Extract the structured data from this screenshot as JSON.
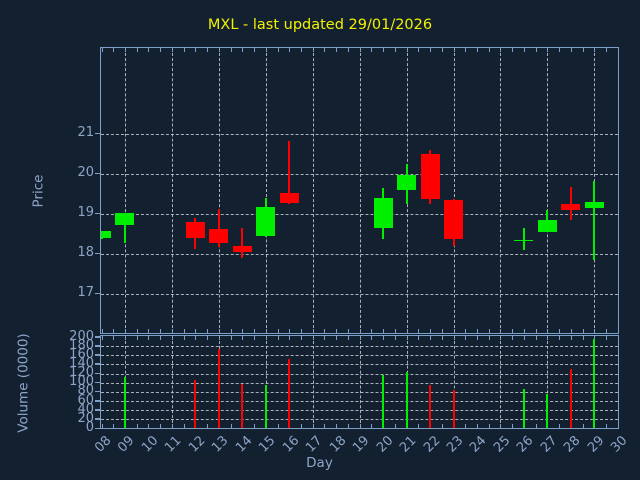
{
  "figure": {
    "background": "#13202f",
    "spine_color": "#7da0c8",
    "label_color": "#8ca5c8",
    "grid_color": "#c6cbd0",
    "title_color": "#f2f200"
  },
  "chart_data": [
    {
      "type": "candlestick",
      "panel": "price",
      "title": "MXL - last updated 29/01/2026",
      "xlabel": "Day",
      "ylabel": "Price",
      "ylim": [
        16.0,
        23.14
      ],
      "xlim": [
        7.95,
        30.1
      ],
      "grid": "dashed; vertical gridlines every 2nd day (09,11,...,29); horizontal at integer prices",
      "legend": "none",
      "up_color": "#00ee00",
      "down_color": "#ff0000",
      "x_tick_labels": [
        "08",
        "09",
        "10",
        "11",
        "12",
        "13",
        "14",
        "15",
        "16",
        "17",
        "18",
        "19",
        "20",
        "21",
        "22",
        "23",
        "24",
        "25",
        "26",
        "27",
        "28",
        "29",
        "30"
      ],
      "y_tick_labels": [
        "17",
        "18",
        "19",
        "20",
        "21"
      ],
      "y_tick_values": [
        17,
        18,
        19,
        20,
        21
      ],
      "days": [
        8,
        9,
        12,
        13,
        14,
        15,
        16,
        20,
        21,
        22,
        23,
        26,
        27,
        28,
        29
      ],
      "open": [
        18.38,
        18.72,
        18.78,
        18.61,
        18.18,
        18.44,
        19.51,
        18.63,
        19.59,
        20.49,
        19.34,
        18.33,
        18.54,
        19.25,
        19.13
      ],
      "high": [
        18.57,
        19.01,
        18.88,
        19.11,
        18.65,
        19.39,
        20.81,
        19.63,
        20.25,
        20.59,
        19.36,
        18.64,
        19.09,
        19.67,
        19.82
      ],
      "low": [
        18.36,
        18.26,
        18.11,
        18.15,
        17.9,
        18.4,
        19.24,
        18.36,
        19.25,
        19.24,
        18.19,
        18.09,
        18.53,
        18.84,
        17.83
      ],
      "close": [
        18.57,
        19.01,
        18.39,
        18.26,
        18.04,
        19.17,
        19.26,
        19.38,
        19.96,
        19.36,
        18.36,
        18.35,
        18.84,
        19.08,
        19.3
      ]
    },
    {
      "type": "bar",
      "panel": "volume",
      "ylabel": "Volume (0000)",
      "ylim": [
        0,
        200
      ],
      "grid": "dashed; horizontal every 20 units; vertical every 2nd day",
      "y_tick_labels": [
        "0",
        "20",
        "40",
        "60",
        "80",
        "100",
        "120",
        "140",
        "160",
        "180",
        "200"
      ],
      "y_tick_values": [
        0,
        20,
        40,
        60,
        80,
        100,
        120,
        140,
        160,
        180,
        200
      ],
      "days": [
        8,
        9,
        12,
        13,
        14,
        15,
        16,
        20,
        21,
        22,
        23,
        26,
        27,
        28,
        29
      ],
      "values": [
        0,
        112,
        105,
        174,
        97,
        95,
        152,
        117,
        124,
        95,
        84,
        87,
        76,
        130,
        195
      ]
    }
  ]
}
